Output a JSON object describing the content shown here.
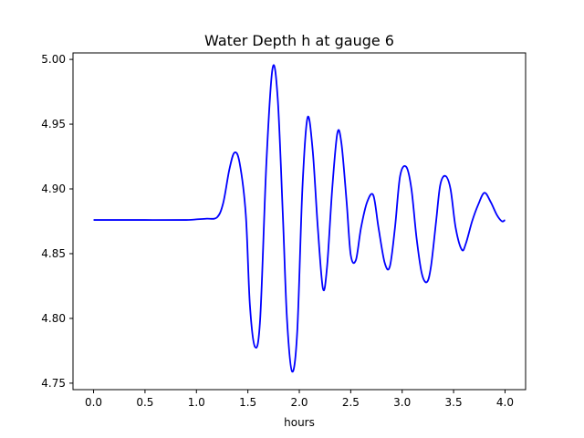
{
  "chart_data": {
    "type": "line",
    "title": "Water Depth h at gauge 6",
    "xlabel": "hours",
    "ylabel": "",
    "xlim": [
      -0.2,
      4.2
    ],
    "ylim": [
      4.745,
      5.005
    ],
    "x_ticks": [
      0.0,
      0.5,
      1.0,
      1.5,
      2.0,
      2.5,
      3.0,
      3.5,
      4.0
    ],
    "x_tick_labels": [
      "0.0",
      "0.5",
      "1.0",
      "1.5",
      "2.0",
      "2.5",
      "3.0",
      "3.5",
      "4.0"
    ],
    "y_ticks": [
      4.75,
      4.8,
      4.85,
      4.9,
      4.95,
      5.0
    ],
    "y_tick_labels": [
      "4.75",
      "4.80",
      "4.85",
      "4.90",
      "4.95",
      "5.00"
    ],
    "grid": false,
    "legend": "none",
    "series": [
      {
        "color": "#0000ff",
        "x": [
          0.0,
          0.5,
          0.9,
          1.0,
          1.1,
          1.2,
          1.26,
          1.32,
          1.37,
          1.42,
          1.48,
          1.52,
          1.57,
          1.62,
          1.68,
          1.74,
          1.79,
          1.84,
          1.88,
          1.93,
          1.98,
          2.03,
          2.08,
          2.13,
          2.18,
          2.23,
          2.27,
          2.32,
          2.37,
          2.41,
          2.46,
          2.5,
          2.55,
          2.6,
          2.66,
          2.72,
          2.77,
          2.83,
          2.88,
          2.93,
          2.98,
          3.04,
          3.09,
          3.14,
          3.19,
          3.24,
          3.28,
          3.33,
          3.37,
          3.42,
          3.47,
          3.52,
          3.58,
          3.62,
          3.68,
          3.74,
          3.8,
          3.86,
          3.92,
          3.97,
          4.0
        ],
        "values": [
          4.876,
          4.876,
          4.876,
          4.8765,
          4.877,
          4.878,
          4.889,
          4.915,
          4.928,
          4.92,
          4.88,
          4.81,
          4.778,
          4.8,
          4.92,
          4.993,
          4.97,
          4.88,
          4.8,
          4.759,
          4.79,
          4.9,
          4.955,
          4.93,
          4.87,
          4.823,
          4.84,
          4.9,
          4.943,
          4.935,
          4.89,
          4.849,
          4.845,
          4.87,
          4.89,
          4.895,
          4.87,
          4.843,
          4.84,
          4.87,
          4.91,
          4.917,
          4.9,
          4.862,
          4.835,
          4.828,
          4.84,
          4.875,
          4.903,
          4.91,
          4.9,
          4.87,
          4.853,
          4.858,
          4.875,
          4.888,
          4.897,
          4.89,
          4.88,
          4.875,
          4.876
        ]
      }
    ]
  }
}
